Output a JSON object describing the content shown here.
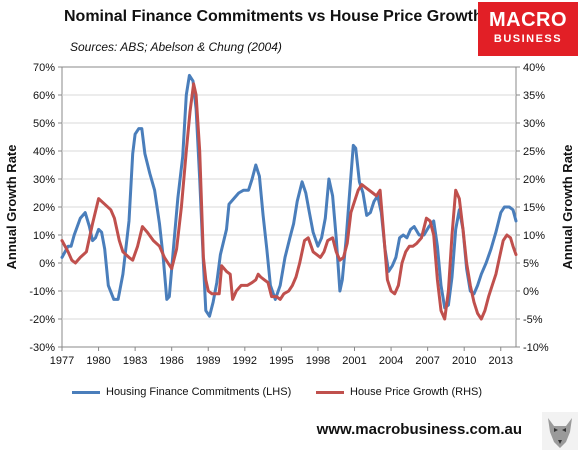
{
  "title": "Nominal Finance Commitments vs House Price Growth",
  "subtitle": "Sources: ABS; Abelson & Chung (2004)",
  "logo": {
    "line1": "MACRO",
    "line2": "BUSINESS",
    "bg_color": "#e21f26"
  },
  "website": "www.macrobusiness.com.au",
  "chart_data": {
    "type": "line",
    "title": "Nominal Finance Commitments vs House Price Growth",
    "ylabel_left": "Annual Growth Rate",
    "ylabel_right": "Annual Growth Rate",
    "ylim_left": [
      -0.3,
      0.7
    ],
    "ylim_right": [
      -0.1,
      0.4
    ],
    "xlim": [
      1977,
      2014.25
    ],
    "x_ticks": [
      "1977",
      "1980",
      "1983",
      "1986",
      "1989",
      "1992",
      "1995",
      "1998",
      "2001",
      "2004",
      "2007",
      "2010",
      "2013"
    ],
    "y_ticks_left": [
      "-30%",
      "-20%",
      "-10%",
      "0%",
      "10%",
      "20%",
      "30%",
      "40%",
      "50%",
      "60%",
      "70%"
    ],
    "y_ticks_right": [
      "-10%",
      "-5%",
      "0%",
      "5%",
      "10%",
      "15%",
      "20%",
      "25%",
      "30%",
      "35%",
      "40%"
    ],
    "grid": true,
    "legend_position": "bottom",
    "series": [
      {
        "name": "Housing Finance Commitments (LHS)",
        "axis": "left",
        "color": "#4a7ebb",
        "points": [
          [
            1977.0,
            0.02
          ],
          [
            1977.5,
            0.06
          ],
          [
            1977.75,
            0.06
          ],
          [
            1978.0,
            0.1
          ],
          [
            1978.5,
            0.16
          ],
          [
            1978.9,
            0.18
          ],
          [
            1979.25,
            0.13
          ],
          [
            1979.5,
            0.08
          ],
          [
            1979.75,
            0.09
          ],
          [
            1980.0,
            0.12
          ],
          [
            1980.25,
            0.11
          ],
          [
            1980.5,
            0.05
          ],
          [
            1980.8,
            -0.08
          ],
          [
            1981.25,
            -0.13
          ],
          [
            1981.6,
            -0.13
          ],
          [
            1982.0,
            -0.04
          ],
          [
            1982.5,
            0.15
          ],
          [
            1982.8,
            0.39
          ],
          [
            1983.0,
            0.46
          ],
          [
            1983.3,
            0.48
          ],
          [
            1983.55,
            0.48
          ],
          [
            1983.8,
            0.39
          ],
          [
            1984.2,
            0.32
          ],
          [
            1984.6,
            0.26
          ],
          [
            1985.0,
            0.14
          ],
          [
            1985.3,
            0.02
          ],
          [
            1985.6,
            -0.13
          ],
          [
            1985.8,
            -0.12
          ],
          [
            1986.2,
            0.08
          ],
          [
            1986.5,
            0.23
          ],
          [
            1986.9,
            0.38
          ],
          [
            1987.2,
            0.6
          ],
          [
            1987.45,
            0.67
          ],
          [
            1987.75,
            0.65
          ],
          [
            1988.0,
            0.55
          ],
          [
            1988.3,
            0.3
          ],
          [
            1988.6,
            0.0
          ],
          [
            1988.8,
            -0.17
          ],
          [
            1989.1,
            -0.19
          ],
          [
            1989.4,
            -0.14
          ],
          [
            1989.7,
            -0.07
          ],
          [
            1990.0,
            0.03
          ],
          [
            1990.5,
            0.12
          ],
          [
            1990.7,
            0.21
          ],
          [
            1991.1,
            0.23
          ],
          [
            1991.5,
            0.25
          ],
          [
            1991.9,
            0.26
          ],
          [
            1992.3,
            0.26
          ],
          [
            1992.6,
            0.3
          ],
          [
            1992.9,
            0.35
          ],
          [
            1993.2,
            0.31
          ],
          [
            1993.5,
            0.17
          ],
          [
            1993.8,
            0.05
          ],
          [
            1994.1,
            -0.08
          ],
          [
            1994.5,
            -0.13
          ],
          [
            1994.9,
            -0.08
          ],
          [
            1995.3,
            0.02
          ],
          [
            1995.7,
            0.09
          ],
          [
            1996.0,
            0.14
          ],
          [
            1996.3,
            0.22
          ],
          [
            1996.7,
            0.29
          ],
          [
            1997.0,
            0.25
          ],
          [
            1997.3,
            0.18
          ],
          [
            1997.6,
            0.11
          ],
          [
            1998.0,
            0.06
          ],
          [
            1998.3,
            0.09
          ],
          [
            1998.6,
            0.16
          ],
          [
            1998.9,
            0.3
          ],
          [
            1999.2,
            0.24
          ],
          [
            1999.5,
            0.09
          ],
          [
            1999.8,
            -0.1
          ],
          [
            2000.0,
            -0.06
          ],
          [
            2000.3,
            0.08
          ],
          [
            2000.6,
            0.25
          ],
          [
            2000.9,
            0.42
          ],
          [
            2001.1,
            0.41
          ],
          [
            2001.4,
            0.29
          ],
          [
            2001.7,
            0.25
          ],
          [
            2002.0,
            0.17
          ],
          [
            2002.3,
            0.18
          ],
          [
            2002.6,
            0.22
          ],
          [
            2002.9,
            0.24
          ],
          [
            2003.2,
            0.18
          ],
          [
            2003.5,
            0.05
          ],
          [
            2003.8,
            -0.03
          ],
          [
            2004.1,
            -0.01
          ],
          [
            2004.4,
            0.02
          ],
          [
            2004.7,
            0.09
          ],
          [
            2005.0,
            0.1
          ],
          [
            2005.3,
            0.09
          ],
          [
            2005.6,
            0.12
          ],
          [
            2005.9,
            0.13
          ],
          [
            2006.3,
            0.1
          ],
          [
            2006.7,
            0.1
          ],
          [
            2007.1,
            0.13
          ],
          [
            2007.5,
            0.15
          ],
          [
            2007.8,
            0.06
          ],
          [
            2008.1,
            -0.08
          ],
          [
            2008.4,
            -0.16
          ],
          [
            2008.7,
            -0.15
          ],
          [
            2009.0,
            -0.05
          ],
          [
            2009.3,
            0.12
          ],
          [
            2009.6,
            0.19
          ],
          [
            2009.9,
            0.12
          ],
          [
            2010.2,
            -0.02
          ],
          [
            2010.5,
            -0.1
          ],
          [
            2010.8,
            -0.11
          ],
          [
            2011.1,
            -0.08
          ],
          [
            2011.4,
            -0.04
          ],
          [
            2011.8,
            0.0
          ],
          [
            2012.2,
            0.05
          ],
          [
            2012.6,
            0.11
          ],
          [
            2013.0,
            0.18
          ],
          [
            2013.3,
            0.2
          ],
          [
            2013.7,
            0.2
          ],
          [
            2014.0,
            0.19
          ],
          [
            2014.25,
            0.15
          ]
        ]
      },
      {
        "name": "House Price Growth (RHS)",
        "axis": "right",
        "color": "#c0504d",
        "points": [
          [
            1977.0,
            0.09
          ],
          [
            1977.5,
            0.07
          ],
          [
            1977.8,
            0.055
          ],
          [
            1978.1,
            0.05
          ],
          [
            1978.5,
            0.06
          ],
          [
            1979.0,
            0.07
          ],
          [
            1979.5,
            0.12
          ],
          [
            1980.0,
            0.165
          ],
          [
            1980.5,
            0.155
          ],
          [
            1981.0,
            0.145
          ],
          [
            1981.3,
            0.13
          ],
          [
            1981.7,
            0.09
          ],
          [
            1982.0,
            0.07
          ],
          [
            1982.5,
            0.06
          ],
          [
            1982.8,
            0.055
          ],
          [
            1983.2,
            0.08
          ],
          [
            1983.6,
            0.115
          ],
          [
            1984.0,
            0.105
          ],
          [
            1984.5,
            0.09
          ],
          [
            1985.0,
            0.08
          ],
          [
            1985.4,
            0.06
          ],
          [
            1985.7,
            0.05
          ],
          [
            1986.0,
            0.04
          ],
          [
            1986.4,
            0.075
          ],
          [
            1986.8,
            0.15
          ],
          [
            1987.2,
            0.25
          ],
          [
            1987.5,
            0.32
          ],
          [
            1987.8,
            0.37
          ],
          [
            1988.0,
            0.35
          ],
          [
            1988.3,
            0.25
          ],
          [
            1988.6,
            0.06
          ],
          [
            1988.8,
            0.02
          ],
          [
            1989.0,
            0.0
          ],
          [
            1989.3,
            -0.005
          ],
          [
            1989.6,
            -0.005
          ],
          [
            1989.9,
            -0.005
          ],
          [
            1990.1,
            0.045
          ],
          [
            1990.5,
            0.035
          ],
          [
            1990.8,
            0.03
          ],
          [
            1991.0,
            -0.015
          ],
          [
            1991.3,
            0.0
          ],
          [
            1991.7,
            0.01
          ],
          [
            1992.2,
            0.01
          ],
          [
            1992.6,
            0.015
          ],
          [
            1992.9,
            0.02
          ],
          [
            1993.1,
            0.03
          ],
          [
            1993.3,
            0.025
          ],
          [
            1993.6,
            0.02
          ],
          [
            1993.9,
            0.015
          ],
          [
            1994.2,
            -0.01
          ],
          [
            1994.6,
            -0.01
          ],
          [
            1994.9,
            -0.015
          ],
          [
            1995.2,
            -0.005
          ],
          [
            1995.6,
            0.0
          ],
          [
            1995.9,
            0.01
          ],
          [
            1996.2,
            0.025
          ],
          [
            1996.5,
            0.05
          ],
          [
            1996.9,
            0.09
          ],
          [
            1997.2,
            0.095
          ],
          [
            1997.6,
            0.07
          ],
          [
            1997.9,
            0.065
          ],
          [
            1998.2,
            0.06
          ],
          [
            1998.5,
            0.07
          ],
          [
            1998.8,
            0.09
          ],
          [
            1999.2,
            0.095
          ],
          [
            1999.5,
            0.07
          ],
          [
            1999.8,
            0.055
          ],
          [
            2000.1,
            0.06
          ],
          [
            2000.4,
            0.085
          ],
          [
            2000.7,
            0.14
          ],
          [
            2001.0,
            0.16
          ],
          [
            2001.3,
            0.18
          ],
          [
            2001.6,
            0.19
          ],
          [
            2001.9,
            0.185
          ],
          [
            2002.2,
            0.18
          ],
          [
            2002.5,
            0.175
          ],
          [
            2002.8,
            0.17
          ],
          [
            2003.1,
            0.18
          ],
          [
            2003.4,
            0.1
          ],
          [
            2003.7,
            0.02
          ],
          [
            2004.0,
            0.0
          ],
          [
            2004.3,
            -0.005
          ],
          [
            2004.6,
            0.01
          ],
          [
            2004.9,
            0.05
          ],
          [
            2005.2,
            0.07
          ],
          [
            2005.5,
            0.08
          ],
          [
            2005.8,
            0.08
          ],
          [
            2006.1,
            0.085
          ],
          [
            2006.5,
            0.095
          ],
          [
            2006.9,
            0.13
          ],
          [
            2007.2,
            0.125
          ],
          [
            2007.5,
            0.1
          ],
          [
            2007.8,
            0.02
          ],
          [
            2008.1,
            -0.035
          ],
          [
            2008.4,
            -0.05
          ],
          [
            2008.7,
            0.0
          ],
          [
            2009.0,
            0.1
          ],
          [
            2009.3,
            0.18
          ],
          [
            2009.6,
            0.165
          ],
          [
            2009.9,
            0.11
          ],
          [
            2010.2,
            0.05
          ],
          [
            2010.5,
            0.01
          ],
          [
            2010.8,
            -0.02
          ],
          [
            2011.1,
            -0.04
          ],
          [
            2011.4,
            -0.05
          ],
          [
            2011.7,
            -0.035
          ],
          [
            2012.0,
            -0.01
          ],
          [
            2012.3,
            0.01
          ],
          [
            2012.6,
            0.03
          ],
          [
            2012.9,
            0.06
          ],
          [
            2013.2,
            0.09
          ],
          [
            2013.5,
            0.1
          ],
          [
            2013.8,
            0.095
          ],
          [
            2014.0,
            0.08
          ],
          [
            2014.25,
            0.065
          ]
        ]
      }
    ]
  }
}
